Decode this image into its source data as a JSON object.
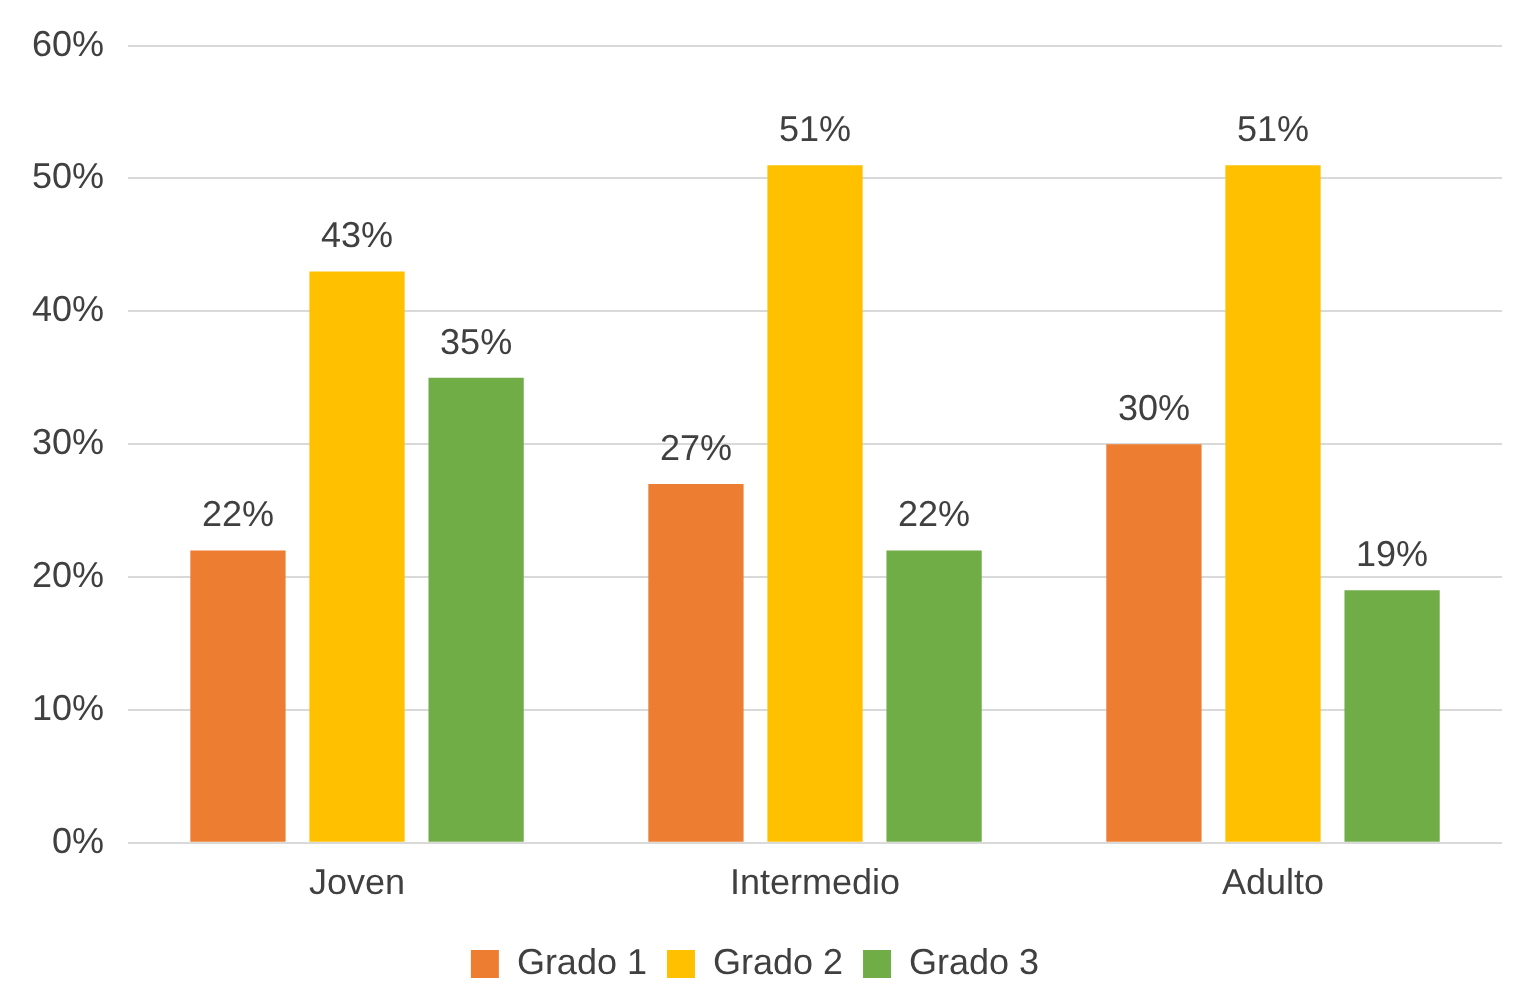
{
  "chart_data": {
    "type": "bar",
    "categories": [
      "Joven",
      "Intermedio",
      "Adulto"
    ],
    "series": [
      {
        "name": "Grado 1",
        "color": "#ed7d31",
        "values": [
          22,
          27,
          30
        ],
        "value_labels": [
          "22%",
          "27%",
          "30%"
        ]
      },
      {
        "name": "Grado 2",
        "color": "#ffc000",
        "values": [
          43,
          51,
          51
        ],
        "value_labels": [
          "43%",
          "51%",
          "51%"
        ]
      },
      {
        "name": "Grado 3",
        "color": "#70ad47",
        "values": [
          35,
          22,
          19
        ],
        "value_labels": [
          "35%",
          "22%",
          "19%"
        ]
      }
    ],
    "ylim": [
      0,
      60
    ],
    "yticks": [
      {
        "value": 0,
        "label": "0%"
      },
      {
        "value": 10,
        "label": "10%"
      },
      {
        "value": 20,
        "label": "20%"
      },
      {
        "value": 30,
        "label": "30%"
      },
      {
        "value": 40,
        "label": "40%"
      },
      {
        "value": 50,
        "label": "50%"
      },
      {
        "value": 60,
        "label": "60%"
      }
    ],
    "grid": "y",
    "legend": "bottom"
  }
}
